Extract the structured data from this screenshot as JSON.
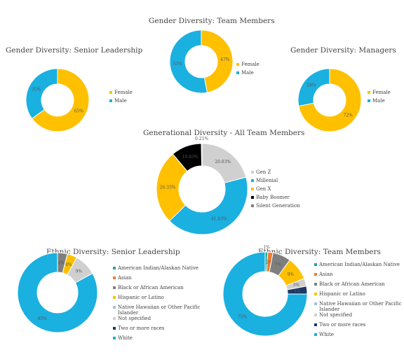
{
  "chart_data": [
    {
      "id": "senior",
      "type": "pie",
      "title": "Gender Diversity: Senior Leadership",
      "categories": [
        "Female",
        "Male"
      ],
      "values": [
        65,
        35
      ],
      "labels": [
        "65%",
        "35%"
      ],
      "colors": [
        "#FFC000",
        "#1AB0E0"
      ],
      "start_deg": 0,
      "legend": "right"
    },
    {
      "id": "team",
      "type": "pie",
      "title": "Gender Diversity: Team Members",
      "categories": [
        "Female",
        "Male"
      ],
      "values": [
        47,
        53
      ],
      "labels": [
        "47%",
        "53%"
      ],
      "colors": [
        "#FFC000",
        "#1AB0E0"
      ],
      "start_deg": 0,
      "legend": "right"
    },
    {
      "id": "managers",
      "type": "pie",
      "title": "Gender Diversity: Managers",
      "categories": [
        "Female",
        "Male"
      ],
      "values": [
        72,
        28
      ],
      "labels": [
        "72%",
        "28%"
      ],
      "colors": [
        "#FFC000",
        "#1AB0E0"
      ],
      "start_deg": 0,
      "legend": "right"
    },
    {
      "id": "generational",
      "type": "pie",
      "title": "Generational Diversity - All Team Members",
      "categories": [
        "Gen Z",
        "Millenial",
        "Gen X",
        "Baby Boomer",
        "Silent Generation"
      ],
      "values": [
        20.83,
        41.83,
        26.33,
        10.83,
        0.21
      ],
      "labels": [
        "20.83%",
        "41.83%",
        "26.33%",
        "10.83%",
        "0.21%"
      ],
      "colors": [
        "#D0D0D0",
        "#1AB0E0",
        "#FFC000",
        "#000000",
        "#7F7F7F"
      ],
      "start_deg": 0,
      "legend": "right"
    },
    {
      "id": "ethnic-senior",
      "type": "pie",
      "title": "Ethnic Diversity: Senior Leadership",
      "categories": [
        "American Indian/Alaskan Native",
        "Asian",
        "Black or African American",
        "Hispanic or Latino",
        "Native Hawaiian or Other Pacific Islander",
        "Not specified",
        "Two or more races",
        "White"
      ],
      "values": [
        0,
        0,
        4,
        4,
        0,
        9,
        0,
        83
      ],
      "labels": [
        "",
        "",
        "4%",
        "4%",
        "",
        "9%",
        "",
        "83%"
      ],
      "colors": [
        "#26A69A",
        "#ED7D31",
        "#7F7F7F",
        "#FFC000",
        "#9BC2E6",
        "#D0D0D0",
        "#1F3864",
        "#1AB0E0"
      ],
      "start_deg": 0,
      "legend": "right"
    },
    {
      "id": "ethnic-team",
      "type": "pie",
      "title": "Ethnic Diversity: Team Members",
      "categories": [
        "American Indian/Alaskan Native",
        "Asian",
        "Black or African American",
        "Hispanic or Latino",
        "Native Hawaiian or Other Pacific Islander",
        "Not specified",
        "Two or more races",
        "White"
      ],
      "values": [
        1,
        2,
        7,
        9,
        0,
        3,
        3,
        75
      ],
      "labels": [
        "1%",
        "2%",
        "7%",
        "9%",
        "",
        "3%",
        "3%",
        "75%"
      ],
      "colors": [
        "#26A69A",
        "#ED7D31",
        "#7F7F7F",
        "#FFC000",
        "#9BC2E6",
        "#D0D0D0",
        "#1F3864",
        "#1AB0E0"
      ],
      "start_deg": 0,
      "legend": "right"
    }
  ]
}
